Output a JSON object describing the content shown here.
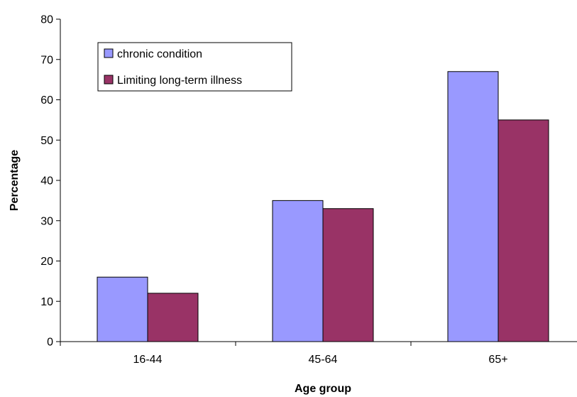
{
  "chart_data": {
    "type": "bar",
    "title": "",
    "xlabel": "Age group",
    "ylabel": "Percentage",
    "categories": [
      "16-44",
      "45-64",
      "65+"
    ],
    "series": [
      {
        "name": "chronic condition",
        "values": [
          16,
          35,
          67
        ],
        "color": "#9999ff"
      },
      {
        "name": "Limiting long-term illness",
        "values": [
          12,
          33,
          55
        ],
        "color": "#993366"
      }
    ],
    "ylim": [
      0,
      80
    ],
    "yticks": [
      0,
      10,
      20,
      30,
      40,
      50,
      60,
      70,
      80
    ],
    "grid": false,
    "legend_position": "top-left"
  }
}
